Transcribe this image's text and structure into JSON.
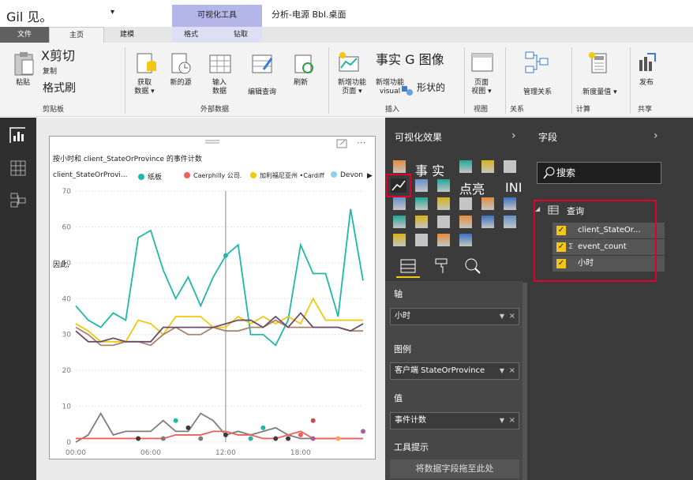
{
  "titlebar": {
    "app": "Gil 见。",
    "context_tools": "可视化工具",
    "doc_title": "分析-电源 Bbl.桌面"
  },
  "tabs": {
    "file": "文件",
    "home": "主页",
    "model": "建模",
    "format": "格式",
    "data": "钻取"
  },
  "ribbon": {
    "paste": "粘贴",
    "cut": "X剪切",
    "copy": "复制",
    "format_painter": "格式刷",
    "clipboard": "剪贴板",
    "get_data": "获取",
    "get_data2": "数据",
    "recent": "新的源",
    "enter": "输入",
    "enter2": "数据",
    "edit": "编辑查询",
    "refresh": "刷新",
    "external": "外部数据",
    "new_page": "新增功能",
    "new_page2": "页面",
    "new_visual": "新增功能",
    "new_visual2": "visual",
    "fact": "事实 G 图像",
    "shapes": "形状的",
    "insert": "插入",
    "page_view": "页面",
    "page_view2": "视图",
    "view": "视图",
    "manage_rel": "管理关系",
    "relationships": "关系",
    "new_measure": "新度量值",
    "calc": "计算",
    "publish": "发布",
    "share": "共享"
  },
  "chart": {
    "title": "按小时和 client_StateOrProvince 的事件计数",
    "annotation": "因此,"
  },
  "legend": {
    "label": "client_StateOrProvi...",
    "items": [
      {
        "name": "纸板",
        "color": "#1fb8a6"
      },
      {
        "name": "Caerphilly 公司.",
        "color": "#f0605b"
      },
      {
        "name": "加利福尼亚州 •Cardiff",
        "color": "#f2c811"
      },
      {
        "name": "Devon",
        "color": "#8ad4eb"
      }
    ]
  },
  "chart_data": {
    "type": "line",
    "x": [
      "00:00",
      "01:00",
      "02:00",
      "03:00",
      "04:00",
      "05:00",
      "06:00",
      "07:00",
      "08:00",
      "09:00",
      "10:00",
      "11:00",
      "12:00",
      "13:00",
      "14:00",
      "15:00",
      "16:00",
      "17:00",
      "18:00",
      "19:00",
      "20:00",
      "21:00",
      "22:00",
      "23:00"
    ],
    "xticks": [
      "00:00",
      "06:00",
      "12:00",
      "18:00"
    ],
    "yticks": [
      0,
      10,
      20,
      30,
      40,
      50,
      60,
      70
    ],
    "ylim": [
      0,
      70
    ],
    "series": [
      {
        "name": "纸板",
        "color": "#1fb8a6",
        "values": [
          38,
          34,
          32,
          36,
          34,
          57,
          59,
          48,
          40,
          46,
          38,
          46,
          52,
          55,
          30,
          30,
          27,
          34,
          55,
          47,
          47,
          35,
          65,
          45
        ]
      },
      {
        "name": "加利福尼亚州 •Cardiff",
        "color": "#f2c811",
        "values": [
          33,
          31,
          28,
          28,
          28,
          34,
          33,
          30,
          35,
          35,
          35,
          32,
          32,
          35,
          33,
          35,
          33,
          35,
          33,
          40,
          34,
          34,
          34,
          34
        ]
      },
      {
        "name": "",
        "color": "#a9846c",
        "values": [
          32,
          30,
          27,
          27,
          28,
          28,
          27,
          30,
          32,
          30,
          30,
          32,
          31,
          31,
          32,
          32,
          34,
          32,
          32,
          32,
          32,
          32,
          31,
          31
        ]
      },
      {
        "name": "",
        "color": "#6b4c6b",
        "values": [
          31,
          28,
          28,
          29,
          28,
          28,
          28,
          32,
          32,
          32,
          32,
          32,
          33,
          34,
          34,
          32,
          35,
          32,
          36,
          32,
          32,
          32,
          31,
          33
        ]
      },
      {
        "name": "",
        "color": "#7d7d7d",
        "values": [
          0,
          2,
          8,
          2,
          3,
          3,
          3,
          6,
          3,
          3,
          8,
          6,
          2,
          3,
          2,
          3,
          4,
          2,
          1,
          1,
          1,
          1,
          1,
          1
        ]
      },
      {
        "name": "Caerphilly 公司.",
        "color": "#f0605b",
        "values": [
          1,
          1,
          1,
          1,
          1,
          1,
          1,
          1,
          2,
          2,
          2,
          3,
          3,
          2,
          2,
          1,
          1,
          2,
          3,
          1,
          1,
          1,
          1,
          1
        ]
      }
    ],
    "dots": [
      {
        "x": 5,
        "y": 1,
        "color": "#3b3b3b"
      },
      {
        "x": 7,
        "y": 1,
        "color": "#7d7d7d"
      },
      {
        "x": 10,
        "y": 1,
        "color": "#7d7d7d"
      },
      {
        "x": 8,
        "y": 6,
        "color": "#1fb8a6"
      },
      {
        "x": 9,
        "y": 4,
        "color": "#3b3b3b"
      },
      {
        "x": 12,
        "y": 2,
        "color": "#3b3b3b"
      },
      {
        "x": 14,
        "y": 1,
        "color": "#1fb8a6"
      },
      {
        "x": 15,
        "y": 4,
        "color": "#1fb8a6"
      },
      {
        "x": 16,
        "y": 1,
        "color": "#3b3b3b"
      },
      {
        "x": 17,
        "y": 1,
        "color": "#3b3b3b"
      },
      {
        "x": 18,
        "y": 2,
        "color": "#f0605b"
      },
      {
        "x": 19,
        "y": 6,
        "color": "#c0504d"
      },
      {
        "x": 19,
        "y": 1,
        "color": "#a0609a"
      },
      {
        "x": 21,
        "y": 1,
        "color": "#f7a35c"
      },
      {
        "x": 23,
        "y": 3,
        "color": "#a0609a"
      }
    ]
  },
  "viz": {
    "header": "可视化效果",
    "overlay1": "事 实",
    "overlay2": "点亮",
    "ini": "INI",
    "axis": "轴",
    "axis_value": "小时",
    "legend": "图例",
    "legend_value": "客户端 StateOrProvince",
    "values": "值",
    "values_value": "事件计数",
    "tooltips": "工具提示",
    "tooltips_drop": "将数据字段拖至此处"
  },
  "fields": {
    "header": "字段",
    "search": "搜索",
    "table": "查询",
    "items": [
      "client_StateOr...",
      "event_count",
      "小时"
    ]
  }
}
